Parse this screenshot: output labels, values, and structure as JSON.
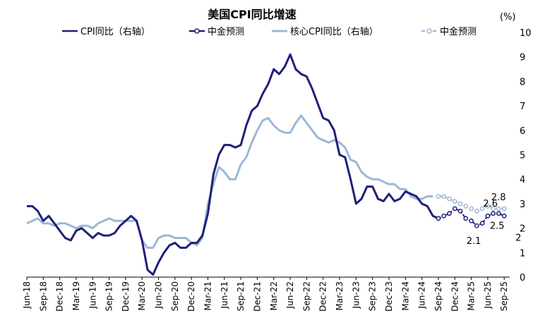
{
  "chart_data": {
    "type": "line",
    "title": "美国CPI同比增速",
    "unit": "(%)",
    "ylim": [
      0,
      10
    ],
    "yticks": [
      "0",
      "1",
      "2",
      "3",
      "4",
      "5",
      "6",
      "7",
      "8",
      "9",
      "10"
    ],
    "x_tick_labels": [
      "Jun-18",
      "Sep-18",
      "Dec-18",
      "Mar-19",
      "Jun-19",
      "Sep-19",
      "Dec-19",
      "Mar-20",
      "Jun-20",
      "Sep-20",
      "Dec-20",
      "Mar-21",
      "Jun-21",
      "Sep-21",
      "Dec-21",
      "Mar-22",
      "Jun-22",
      "Sep-22",
      "Dec-22",
      "Mar-23",
      "Jun-23",
      "Sep-23",
      "Dec-23",
      "Mar-24",
      "Jun-24",
      "Sep-24",
      "Dec-24",
      "Mar-25",
      "Jun-25",
      "Sep-25"
    ],
    "x_start": "2018-06",
    "colors": {
      "cpi": "#1f1f7a",
      "forecast": "#1f1f7a",
      "core": "#9cb8d6",
      "core_forecast": "#9cb8d6"
    },
    "series": [
      {
        "name": "CPI同比（右轴）",
        "start": "2018-06",
        "values": [
          2.9,
          2.9,
          2.7,
          2.3,
          2.5,
          2.2,
          1.9,
          1.6,
          1.5,
          1.9,
          2.0,
          1.8,
          1.6,
          1.8,
          1.7,
          1.7,
          1.8,
          2.1,
          2.3,
          2.5,
          2.3,
          1.5,
          0.3,
          0.1,
          0.6,
          1.0,
          1.3,
          1.4,
          1.2,
          1.2,
          1.4,
          1.4,
          1.7,
          2.6,
          4.2,
          5.0,
          5.4,
          5.4,
          5.3,
          5.4,
          6.2,
          6.8,
          7.0,
          7.5,
          7.9,
          8.5,
          8.3,
          8.6,
          9.1,
          8.5,
          8.3,
          8.2,
          7.7,
          7.1,
          6.5,
          6.4,
          6.0,
          5.0,
          4.9,
          4.0,
          3.0,
          3.2,
          3.7,
          3.7,
          3.2,
          3.1,
          3.4,
          3.1,
          3.2,
          3.5,
          3.4,
          3.3,
          3.0,
          2.9,
          2.5,
          2.4
        ]
      },
      {
        "name": "中金预测",
        "start": "2024-09",
        "values": [
          2.4,
          2.5,
          2.6,
          2.8,
          2.7,
          2.4,
          2.3,
          2.1,
          2.2,
          2.5,
          2.6,
          2.6,
          2.5
        ]
      },
      {
        "name": "核心CPI同比（右轴）",
        "start": "2018-06",
        "values": [
          2.2,
          2.3,
          2.4,
          2.2,
          2.2,
          2.1,
          2.2,
          2.2,
          2.1,
          2.0,
          2.1,
          2.1,
          2.0,
          2.2,
          2.3,
          2.4,
          2.3,
          2.3,
          2.3,
          2.3,
          2.3,
          1.5,
          1.2,
          1.2,
          1.6,
          1.7,
          1.7,
          1.6,
          1.6,
          1.6,
          1.4,
          1.3,
          1.6,
          3.0,
          3.8,
          4.5,
          4.3,
          4.0,
          4.0,
          4.6,
          4.9,
          5.5,
          6.0,
          6.4,
          6.5,
          6.2,
          6.0,
          5.9,
          5.9,
          6.3,
          6.6,
          6.3,
          6.0,
          5.7,
          5.6,
          5.5,
          5.6,
          5.5,
          5.3,
          4.8,
          4.7,
          4.3,
          4.1,
          4.0,
          4.0,
          3.9,
          3.8,
          3.8,
          3.6,
          3.6,
          3.3,
          3.2,
          3.2,
          3.3,
          3.3
        ]
      },
      {
        "name": "中金预测",
        "start": "2024-09",
        "values": [
          3.3,
          3.3,
          3.2,
          3.1,
          3.0,
          2.9,
          2.8,
          2.7,
          2.8,
          2.9,
          2.8,
          2.8,
          2.8
        ]
      }
    ],
    "annotations": [
      {
        "text": "2.6",
        "x": "2025-07",
        "y": 2.6
      },
      {
        "text": "2.8",
        "x": "2025-09",
        "y": 2.8
      },
      {
        "text": "2.5",
        "x": "2025-09",
        "y": 2.5
      },
      {
        "text": "2",
        "x": "2025-09",
        "y": 2.0
      },
      {
        "text": "2.1",
        "x": "2025-05",
        "y": 2.1
      }
    ],
    "legend_position": "top"
  }
}
